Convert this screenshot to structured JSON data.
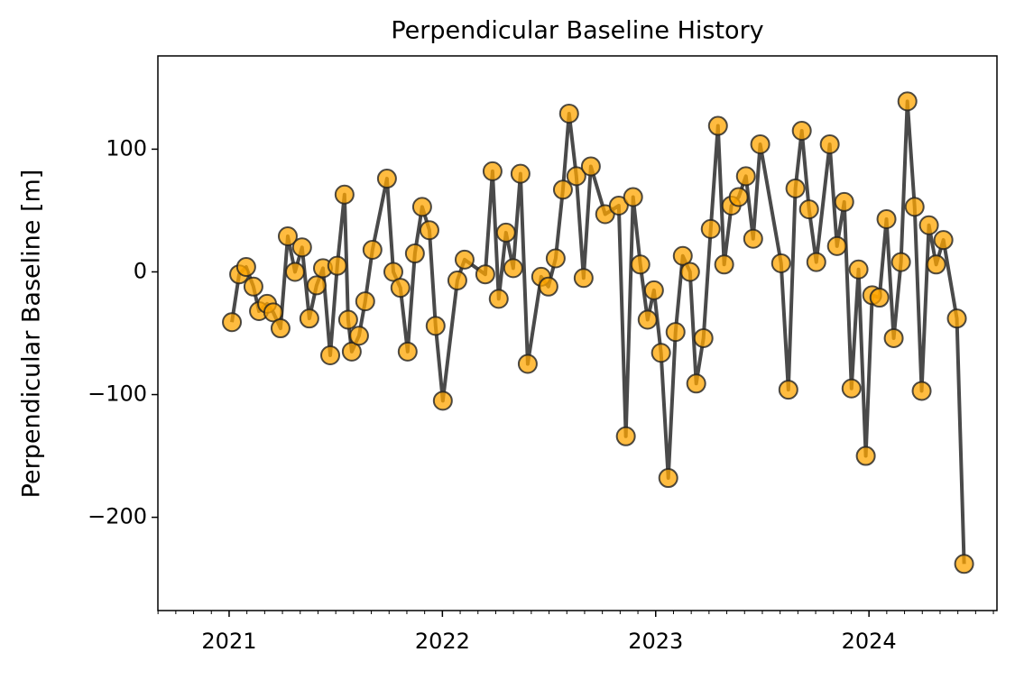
{
  "chart_data": {
    "type": "line",
    "title": "Perpendicular Baseline History",
    "ylabel": "Perpendicular Baseline [m]",
    "x": [
      2021.013,
      2021.047,
      2021.08,
      2021.114,
      2021.14,
      2021.178,
      2021.207,
      2021.241,
      2021.275,
      2021.309,
      2021.342,
      2021.376,
      2021.41,
      2021.44,
      2021.474,
      2021.507,
      2021.541,
      2021.558,
      2021.575,
      2021.609,
      2021.638,
      2021.672,
      2021.74,
      2021.77,
      2021.803,
      2021.837,
      2021.871,
      2021.905,
      2021.939,
      2021.968,
      2022.002,
      2022.07,
      2022.104,
      2022.201,
      2022.235,
      2022.264,
      2022.298,
      2022.332,
      2022.366,
      2022.4,
      2022.463,
      2022.497,
      2022.531,
      2022.565,
      2022.594,
      2022.628,
      2022.662,
      2022.696,
      2022.763,
      2022.827,
      2022.86,
      2022.894,
      2022.928,
      2022.962,
      2022.992,
      2023.025,
      2023.059,
      2023.093,
      2023.127,
      2023.161,
      2023.19,
      2023.224,
      2023.258,
      2023.292,
      2023.321,
      2023.355,
      2023.389,
      2023.423,
      2023.457,
      2023.49,
      2023.588,
      2023.622,
      2023.655,
      2023.685,
      2023.719,
      2023.753,
      2023.816,
      2023.85,
      2023.884,
      2023.918,
      2023.951,
      2023.985,
      2024.015,
      2024.049,
      2024.082,
      2024.116,
      2024.15,
      2024.18,
      2024.214,
      2024.247,
      2024.281,
      2024.315,
      2024.349,
      2024.412,
      2024.446
    ],
    "values": [
      -41,
      -2,
      4,
      -12,
      -32,
      -26,
      -33,
      -46,
      29,
      0,
      20,
      -38,
      -11,
      3,
      -68,
      5,
      63,
      -39,
      -65,
      -52,
      -24,
      18,
      76,
      0,
      -13,
      -65,
      15,
      53,
      34,
      -44,
      -105,
      -7,
      10,
      -2,
      82,
      -22,
      32,
      3,
      80,
      -75,
      -4,
      -12,
      11,
      67,
      129,
      78,
      -5,
      86,
      47,
      54,
      -134,
      61,
      6,
      -39,
      -15,
      -66,
      -168,
      -49,
      13,
      0,
      -91,
      -54,
      35,
      119,
      6,
      54,
      61,
      78,
      27,
      104,
      7,
      -96,
      68,
      115,
      51,
      8,
      104,
      21,
      57,
      -95,
      2,
      -150,
      -19,
      -21,
      43,
      -54,
      8,
      139,
      53,
      -97,
      38,
      6,
      26,
      -38,
      -238
    ],
    "marker_color": "#ffa500",
    "line_color": "#404040",
    "xlim": [
      2020.666,
      2024.6
    ],
    "xticks": [
      2021,
      2022,
      2023,
      2024
    ],
    "ylim": [
      -276,
      176
    ],
    "yticks": [
      {
        "value": -200,
        "label": "−200"
      },
      {
        "value": -100,
        "label": "−100"
      },
      0,
      100
    ]
  }
}
